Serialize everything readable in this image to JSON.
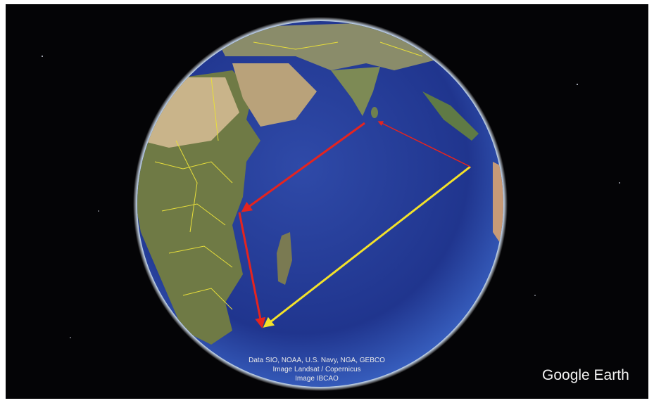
{
  "attribution": {
    "lines": [
      "Data SIO, NOAA, U.S. Navy, NGA, GEBCO",
      "Image Landsat / Copernicus",
      "Image IBCAO"
    ]
  },
  "logo": "Google Earth"
}
